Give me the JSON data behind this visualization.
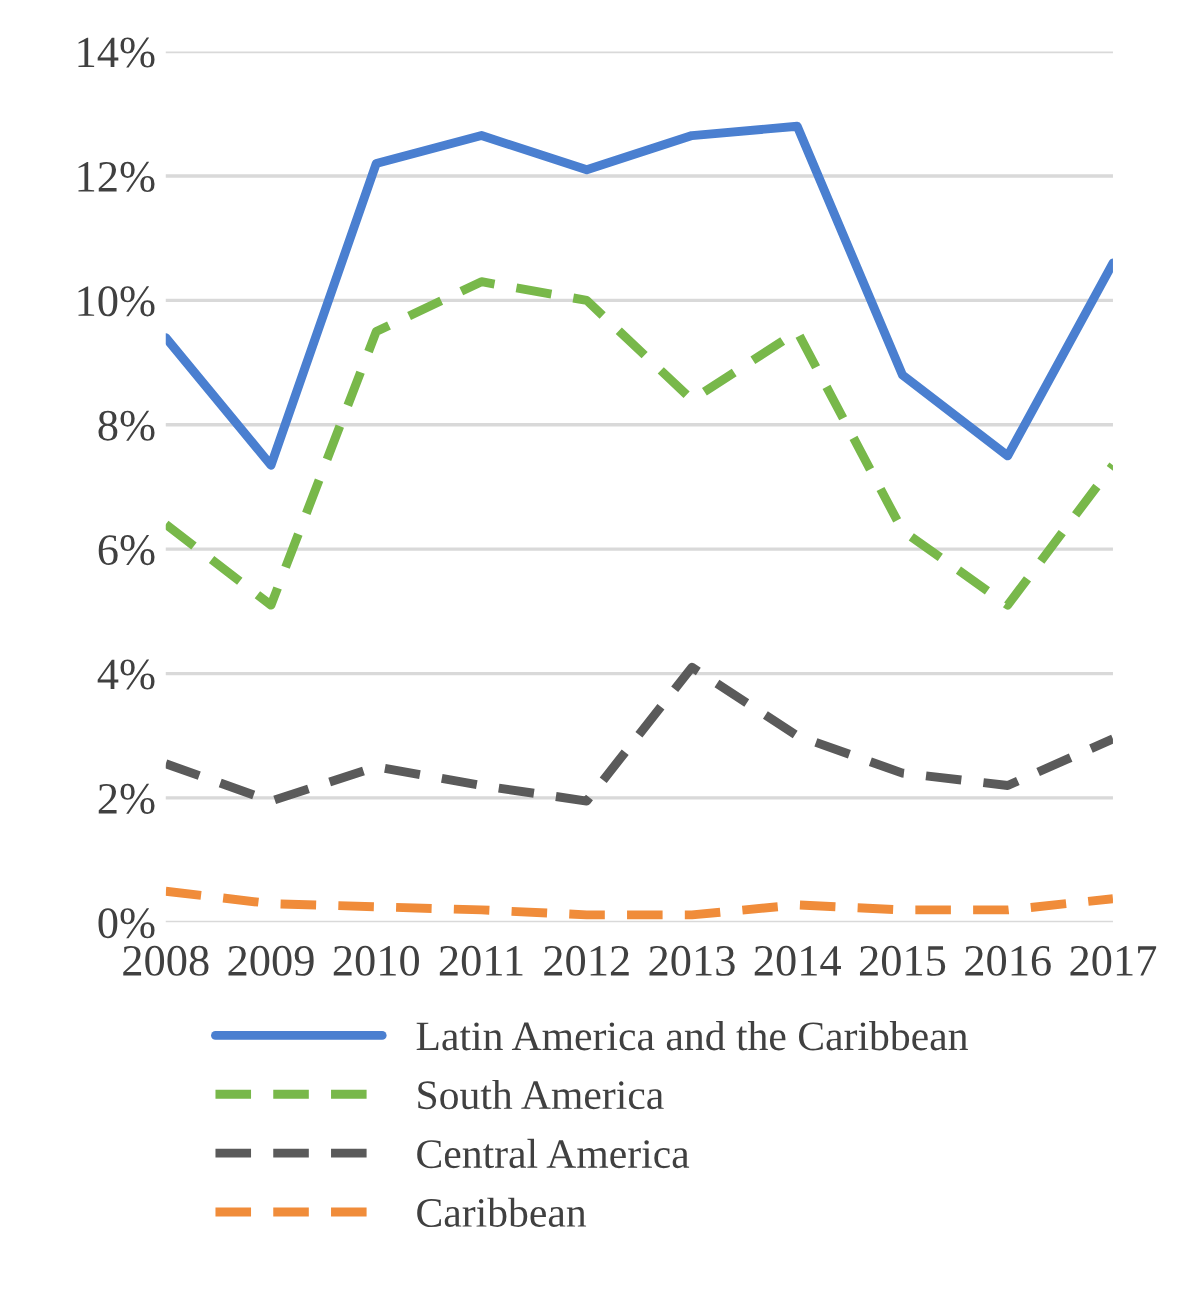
{
  "chart_data": {
    "type": "line",
    "categories": [
      "2008",
      "2009",
      "2010",
      "2011",
      "2012",
      "2013",
      "2014",
      "2015",
      "2016",
      "2017"
    ],
    "series": [
      {
        "name": "Latin America and the Caribbean",
        "color": "#4a7fd0",
        "line_style": "solid",
        "values": [
          9.4,
          7.35,
          12.2,
          12.65,
          12.1,
          12.65,
          12.8,
          8.8,
          7.5,
          10.6
        ]
      },
      {
        "name": "South America",
        "color": "#78b84a",
        "line_style": "dashed",
        "values": [
          6.4,
          5.1,
          9.5,
          10.3,
          10.0,
          8.4,
          9.5,
          6.3,
          5.1,
          7.35
        ]
      },
      {
        "name": "Central America",
        "color": "#5a5a5a",
        "line_style": "dashed",
        "values": [
          2.55,
          1.95,
          2.5,
          2.2,
          1.95,
          4.1,
          3.0,
          2.4,
          2.2,
          2.95
        ]
      },
      {
        "name": "Caribbean",
        "color": "#f08c3a",
        "line_style": "dashed",
        "values": [
          0.5,
          0.3,
          0.25,
          0.2,
          0.12,
          0.12,
          0.28,
          0.2,
          0.2,
          0.38
        ]
      }
    ],
    "ylim": [
      0,
      14
    ],
    "yticks": [
      {
        "value": 0,
        "label": "0%"
      },
      {
        "value": 2,
        "label": "2%"
      },
      {
        "value": 4,
        "label": "4%"
      },
      {
        "value": 6,
        "label": "6%"
      },
      {
        "value": 8,
        "label": "8%"
      },
      {
        "value": 10,
        "label": "10%"
      },
      {
        "value": 12,
        "label": "12%"
      },
      {
        "value": 14,
        "label": "14%"
      }
    ],
    "grid": "y",
    "legend": "bottom",
    "marker": "none"
  }
}
